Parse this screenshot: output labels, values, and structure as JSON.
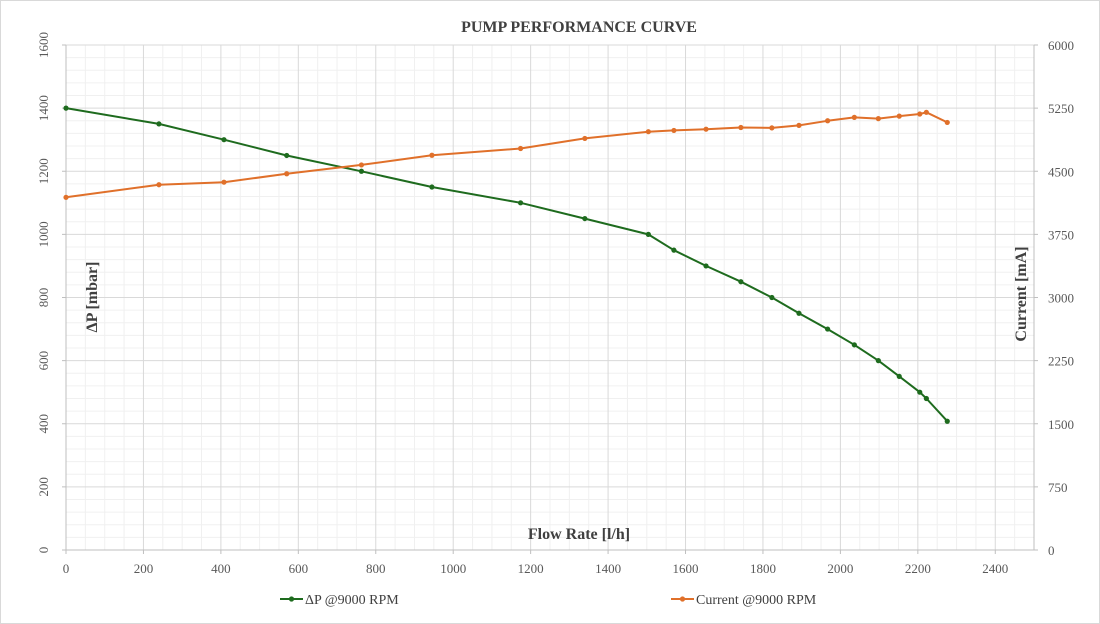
{
  "chart_data": {
    "type": "line",
    "title": "PUMP PERFORMANCE CURVE",
    "xlabel": "Flow Rate [l/h]",
    "ylabel": "ΔP [mbar]",
    "y2label": "Current [mA]",
    "xlim": [
      0,
      2500
    ],
    "ylim": [
      0,
      1600
    ],
    "y2lim": [
      0,
      6000
    ],
    "x_ticks": [
      0,
      200,
      400,
      600,
      800,
      1000,
      1200,
      1400,
      1600,
      1800,
      2000,
      2200,
      2400
    ],
    "y_ticks": [
      0,
      200,
      400,
      600,
      800,
      1000,
      1200,
      1400,
      1600
    ],
    "y2_ticks": [
      0,
      750,
      1500,
      2250,
      3000,
      3750,
      4500,
      5250,
      6000
    ],
    "grid": true,
    "legend_position": "bottom",
    "series": [
      {
        "name": "ΔP @9000 RPM",
        "axis": "left",
        "color": "#1e6b1e",
        "x": [
          0,
          240,
          408,
          570,
          763,
          945,
          1174,
          1340,
          1504,
          1570,
          1653,
          1743,
          1823,
          1893,
          1967,
          2036,
          2098,
          2152,
          2205,
          2222,
          2276
        ],
        "y": [
          1400,
          1350,
          1300,
          1250,
          1200,
          1150,
          1100,
          1050,
          1000,
          950,
          900,
          850,
          800,
          750,
          700,
          650,
          600,
          550,
          500,
          480,
          408
        ]
      },
      {
        "name": "Current @9000 RPM",
        "axis": "right",
        "color": "#e0702a",
        "x": [
          0,
          240,
          408,
          570,
          763,
          945,
          1174,
          1340,
          1504,
          1570,
          1653,
          1743,
          1823,
          1893,
          1967,
          2036,
          2098,
          2152,
          2205,
          2222,
          2276
        ],
        "y": [
          4190,
          4340,
          4370,
          4470,
          4575,
          4690,
          4770,
          4890,
          4970,
          4985,
          5000,
          5020,
          5015,
          5045,
          5100,
          5140,
          5125,
          5155,
          5180,
          5200,
          5080
        ]
      }
    ]
  }
}
